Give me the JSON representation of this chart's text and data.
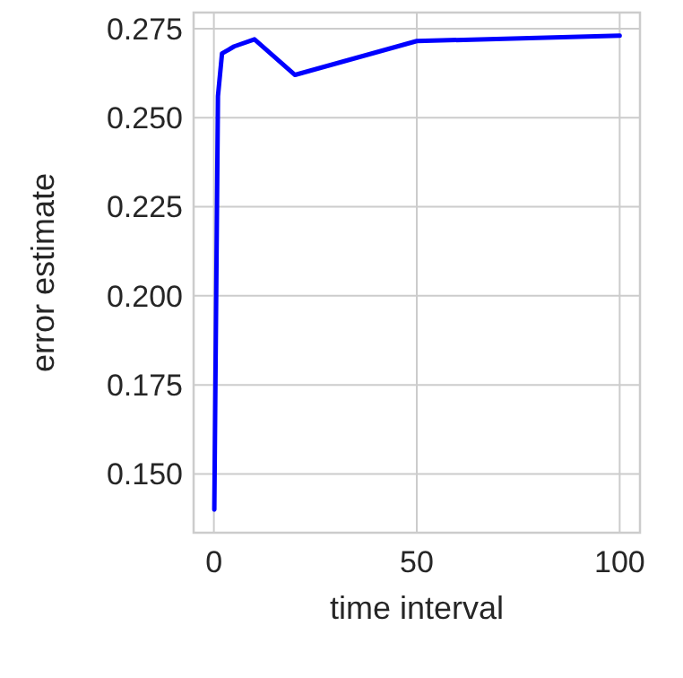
{
  "chart_data": {
    "type": "line",
    "xlabel": "time interval",
    "ylabel": "error estimate",
    "x": [
      0.1,
      1,
      2,
      5,
      10,
      20,
      50,
      100
    ],
    "series": [
      {
        "color": "#0000ff",
        "values": [
          0.14,
          0.256,
          0.268,
          0.27,
          0.272,
          0.262,
          0.2715,
          0.273
        ]
      }
    ],
    "xlim": [
      -5,
      105
    ],
    "xticks": [
      0,
      50,
      100
    ],
    "ylim": [
      0.1335,
      0.2795
    ],
    "yticks": [
      {
        "value": 0.15,
        "label": "0.150"
      },
      0.175,
      {
        "value": 0.2,
        "label": "0.200"
      },
      0.225,
      {
        "value": 0.25,
        "label": "0.250"
      },
      0.275
    ],
    "grid": true,
    "line_style": "solid"
  }
}
